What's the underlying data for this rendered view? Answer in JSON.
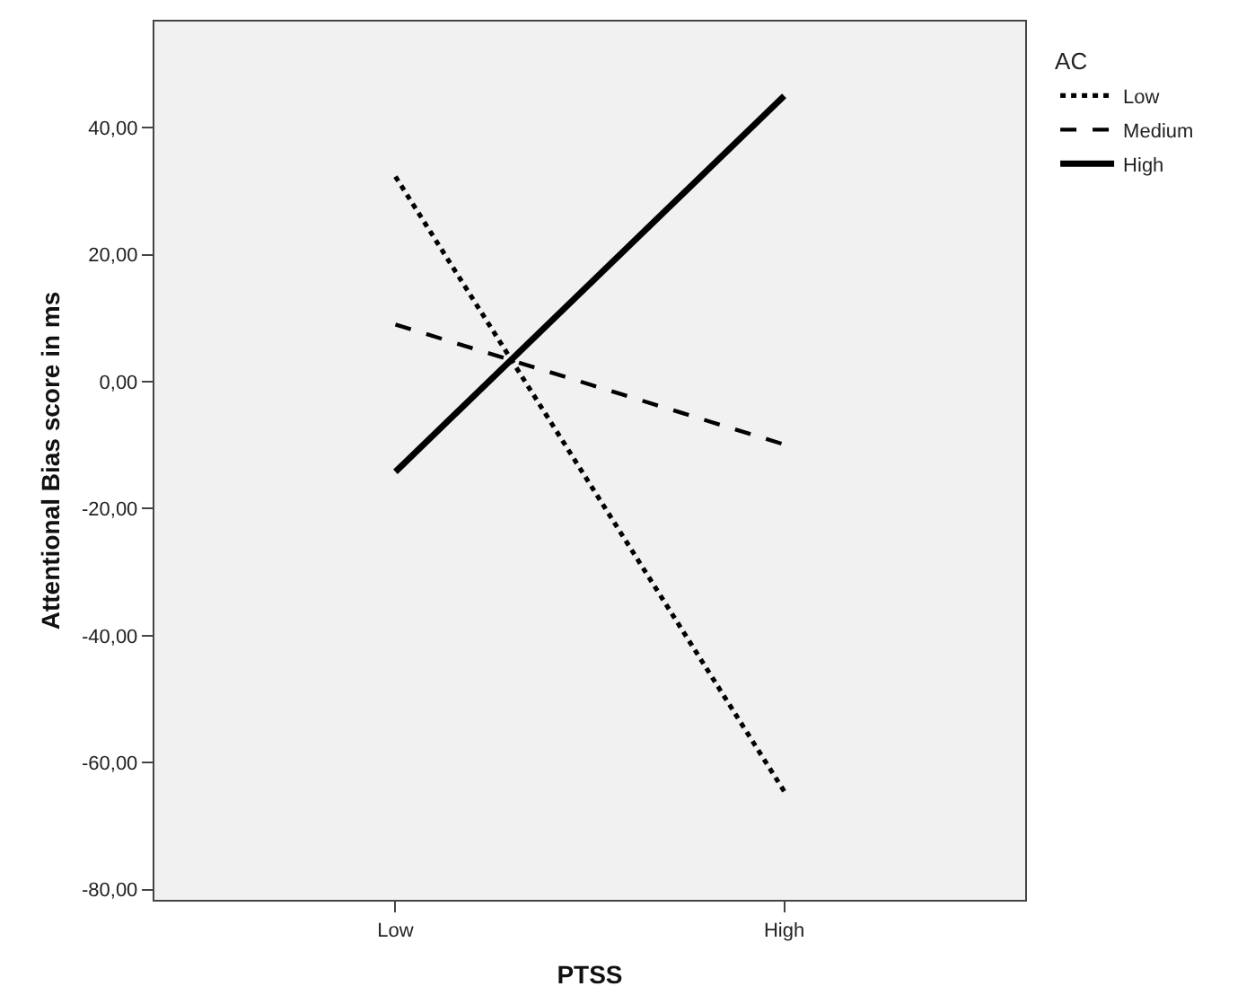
{
  "chart_data": {
    "type": "line",
    "xlabel": "PTSS",
    "ylabel": "Attentional Bias score in ms",
    "legend_title": "AC",
    "legend": "right",
    "grid": false,
    "marker": "none",
    "categories": [
      "Low",
      "High"
    ],
    "series": [
      {
        "name": "Low",
        "color": "#000000",
        "line_style": "dotted",
        "values": [
          32.3,
          -64.5
        ]
      },
      {
        "name": "Medium",
        "color": "#000000",
        "line_style": "dashed",
        "values": [
          9.0,
          -9.9
        ]
      },
      {
        "name": "High",
        "color": "#000000",
        "line_style": "solid",
        "values": [
          -14.2,
          45.0
        ]
      }
    ],
    "ylim": [
      -81.6,
      56.7
    ],
    "yticks": [
      {
        "value": -80,
        "label": "-80,00"
      },
      {
        "value": -60,
        "label": "-60,00"
      },
      {
        "value": -40,
        "label": "-40,00"
      },
      {
        "value": -20,
        "label": "-20,00"
      },
      {
        "value": 0,
        "label": "0,00"
      },
      {
        "value": 20,
        "label": "20,00"
      },
      {
        "value": 40,
        "label": "40,00"
      }
    ]
  }
}
